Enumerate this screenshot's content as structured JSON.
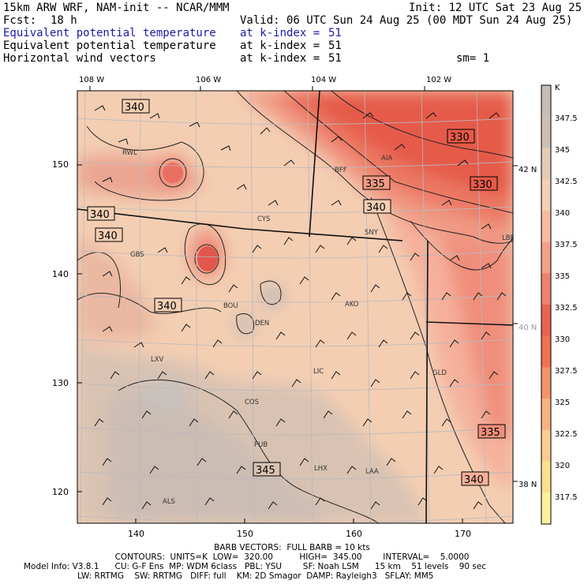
{
  "header": {
    "model": "15km ARW WRF, NAM-init -- NCAR/MMM",
    "init": "Init: 12 UTC Sat 23 Aug 25",
    "fcst_label": "Fcst:",
    "fcst_value": "18 h",
    "valid": "Valid: 06 UTC Sun 24 Aug 25 (00 MDT Sun 24 Aug 25)",
    "fields": [
      {
        "name": "Equivalent potential temperature",
        "level": "at k-index =",
        "k": "51"
      },
      {
        "name": "Equivalent potential temperature",
        "level": "at k-index =",
        "k": "51"
      },
      {
        "name": "Horizontal wind vectors",
        "level": "at k-index =",
        "k": "51"
      }
    ],
    "smoothing": "sm= 1"
  },
  "map": {
    "lon_labels": [
      "108 W",
      "106 W",
      "104 W",
      "102 W"
    ],
    "lat_labels": [
      "42 N",
      "40 N",
      "38 N"
    ],
    "grid_y_labels": [
      "150",
      "140",
      "130",
      "120"
    ],
    "grid_x_labels": [
      "140",
      "150",
      "160",
      "170"
    ],
    "stations": [
      "RWL",
      "BFF",
      "AIA",
      "CYS",
      "SNY",
      "GBS",
      "BOU",
      "AKO",
      "DEN",
      "LXV",
      "LIC",
      "GLD",
      "COS",
      "PUB",
      "LHX",
      "LAA",
      "ALS",
      "LBF"
    ],
    "contour_labels": [
      "340",
      "330",
      "335",
      "330",
      "340",
      "340",
      "340",
      "340",
      "345",
      "335",
      "340"
    ]
  },
  "colorbar": {
    "unit": "K",
    "labels": [
      "347.5",
      "345",
      "342.5",
      "340",
      "337.5",
      "335",
      "332.5",
      "330",
      "327.5",
      "325",
      "322.5",
      "320",
      "317.5"
    ],
    "colors": [
      "#c8bdb4",
      "#cdbfb3",
      "#e5cab5",
      "#f5cfb6",
      "#f6bba2",
      "#f4a089",
      "#ee826d",
      "#e8634f",
      "#f07055",
      "#f6936b",
      "#f8b281",
      "#fbcd8e",
      "#fde08d",
      "#fdf09a"
    ]
  },
  "footer": {
    "barbs": "BARB VECTORS:  FULL BARB = 10 kts",
    "contours": "CONTOURS:  UNITS=K  LOW=  320.00          HIGH=  345.00        INTERVAL=    5.0000",
    "model_info_1": "Model Info: V3.8.1      CU: G-F Ens  MP: WDM 6class   PBL: YSU        SF: Noah LSM      15 km    51 levels    90 sec",
    "model_info_2": "LW: RRTMG    SW: RRTMG   DIFF: full    KM: 2D Smagor  DAMP: Rayleigh3   SFLAY: MM5"
  }
}
